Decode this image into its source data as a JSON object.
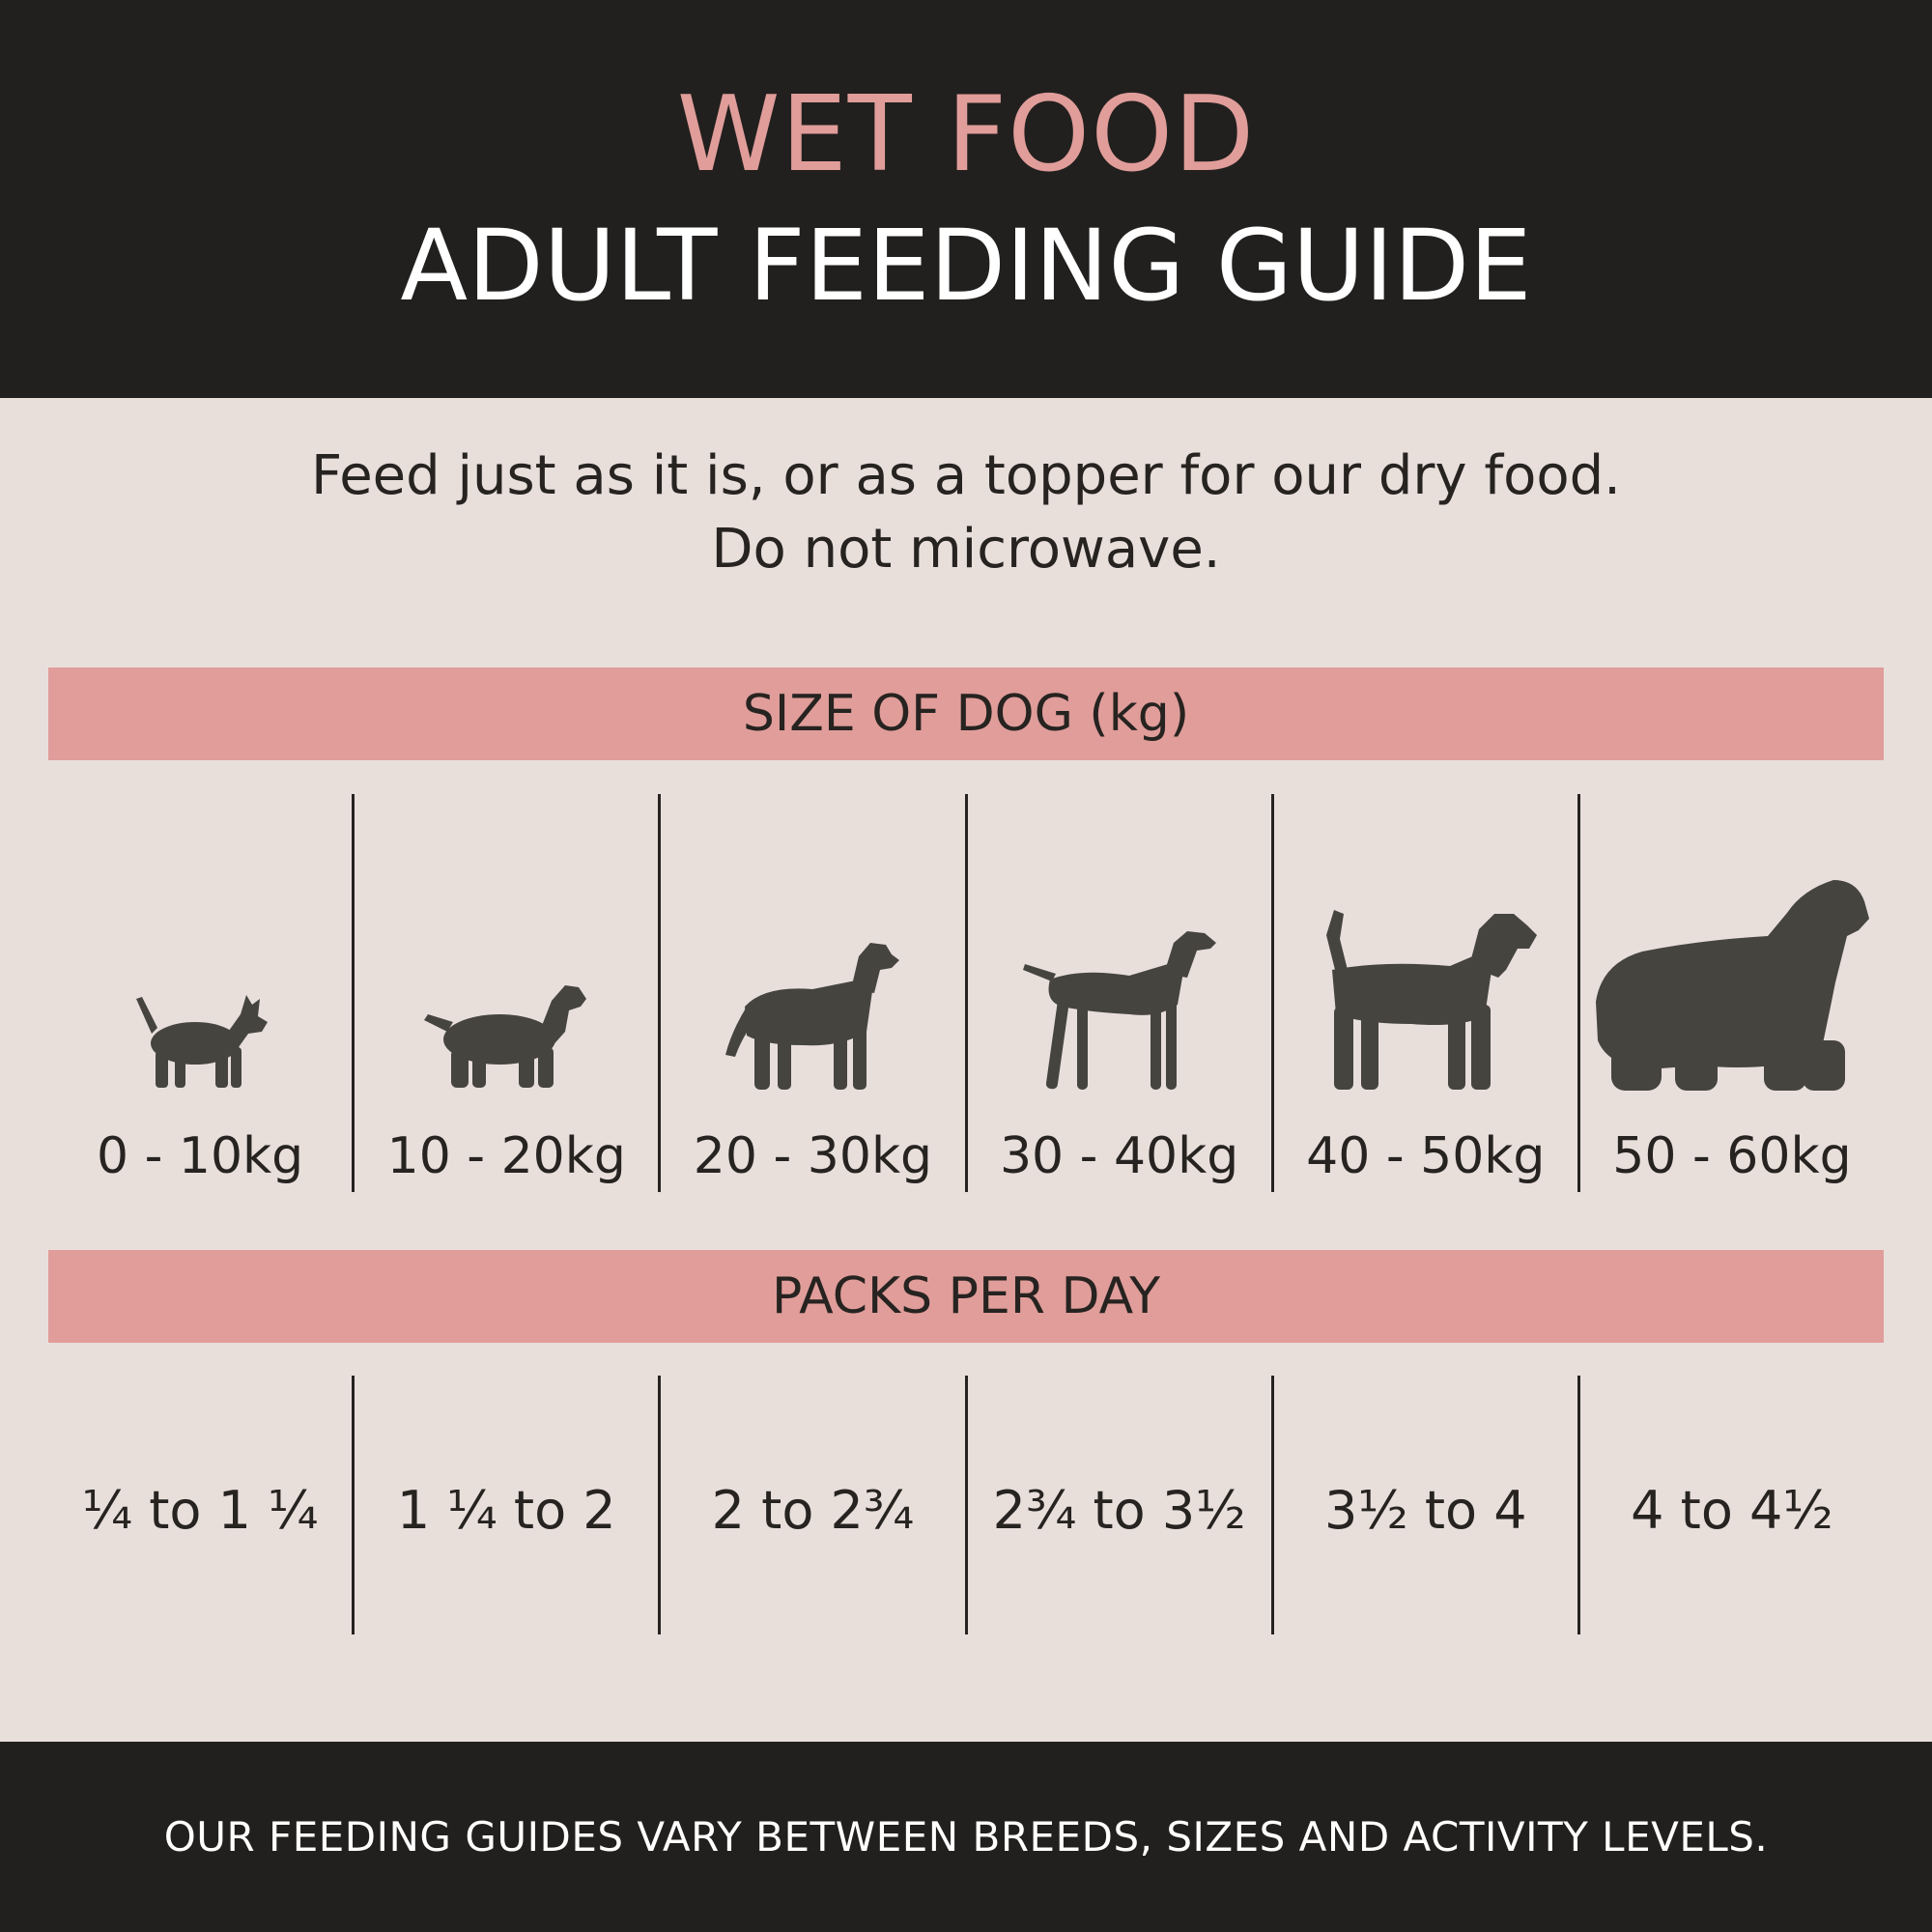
{
  "header": {
    "title_accent": "WET FOOD",
    "title_main": "ADULT FEEDING GUIDE"
  },
  "intro": {
    "line1": "Feed just as it is, or as a topper for our dry food.",
    "line2": "Do not microwave."
  },
  "size_section": {
    "heading": "SIZE OF DOG (kg)",
    "columns": [
      {
        "weight": "0 - 10kg",
        "icon": "small-terrier-icon"
      },
      {
        "weight": "10 - 20kg",
        "icon": "spaniel-icon"
      },
      {
        "weight": "20 - 30kg",
        "icon": "collie-icon"
      },
      {
        "weight": "30 - 40kg",
        "icon": "pointer-icon"
      },
      {
        "weight": "40 - 50kg",
        "icon": "schnauzer-icon"
      },
      {
        "weight": "50 - 60kg",
        "icon": "newfoundland-icon"
      }
    ]
  },
  "packs_section": {
    "heading": "PACKS PER DAY",
    "values": [
      "¼ to 1 ¼",
      "1 ¼ to 2",
      "2 to 2¾",
      "2¾ to 3½",
      "3½ to 4",
      "4 to 4½"
    ]
  },
  "footer": {
    "note": "OUR FEEDING GUIDES VARY BETWEEN BREEDS, SIZES AND ACTIVITY LEVELS."
  },
  "colors": {
    "header_bg": "#22201e",
    "accent": "#e09d9a",
    "page_bg": "#e8dfdb",
    "silhouette": "#46443f"
  }
}
